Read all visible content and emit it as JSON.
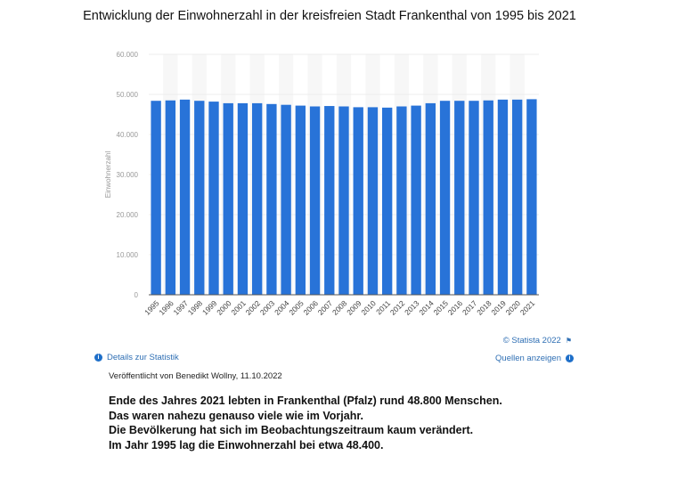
{
  "chart_data": {
    "type": "bar",
    "title": "Entwicklung der Einwohnerzahl in der kreisfreien Stadt Frankenthal von 1995 bis 2021",
    "xlabel": "",
    "ylabel": "Einwohnerzahl",
    "ylim": [
      0,
      60000
    ],
    "yticks": [
      "0",
      "10.000",
      "20.000",
      "30.000",
      "40.000",
      "50.000",
      "60.000"
    ],
    "grid": true,
    "bar_color": "#2873d8",
    "categories": [
      "1995",
      "1996",
      "1997",
      "1998",
      "1999",
      "2000",
      "2001",
      "2002",
      "2003",
      "2004",
      "2005",
      "2006",
      "2007",
      "2008",
      "2009",
      "2010",
      "2011",
      "2012",
      "2013",
      "2014",
      "2015",
      "2016",
      "2017",
      "2018",
      "2019",
      "2020",
      "2021"
    ],
    "values": [
      48400,
      48500,
      48700,
      48400,
      48200,
      47800,
      47800,
      47800,
      47600,
      47400,
      47200,
      47000,
      47100,
      47000,
      46800,
      46800,
      46700,
      47000,
      47200,
      47800,
      48400,
      48400,
      48400,
      48500,
      48700,
      48700,
      48800
    ]
  },
  "footer": {
    "copyright": "© Statista 2022",
    "details": "Details zur Statistik",
    "sources": "Quellen anzeigen",
    "published": "Veröffentlicht von Benedikt Wollny, 11.10.2022"
  },
  "text": {
    "lines": [
      "Ende des Jahres 2021 lebten in Frankenthal (Pfalz) rund 48.800 Menschen.",
      "Das waren nahezu genauso viele wie im Vorjahr.",
      "Die Bevölkerung hat sich im Beobachtungszeitraum kaum verändert.",
      "Im Jahr 1995 lag die Einwohnerzahl bei etwa 48.400."
    ]
  }
}
